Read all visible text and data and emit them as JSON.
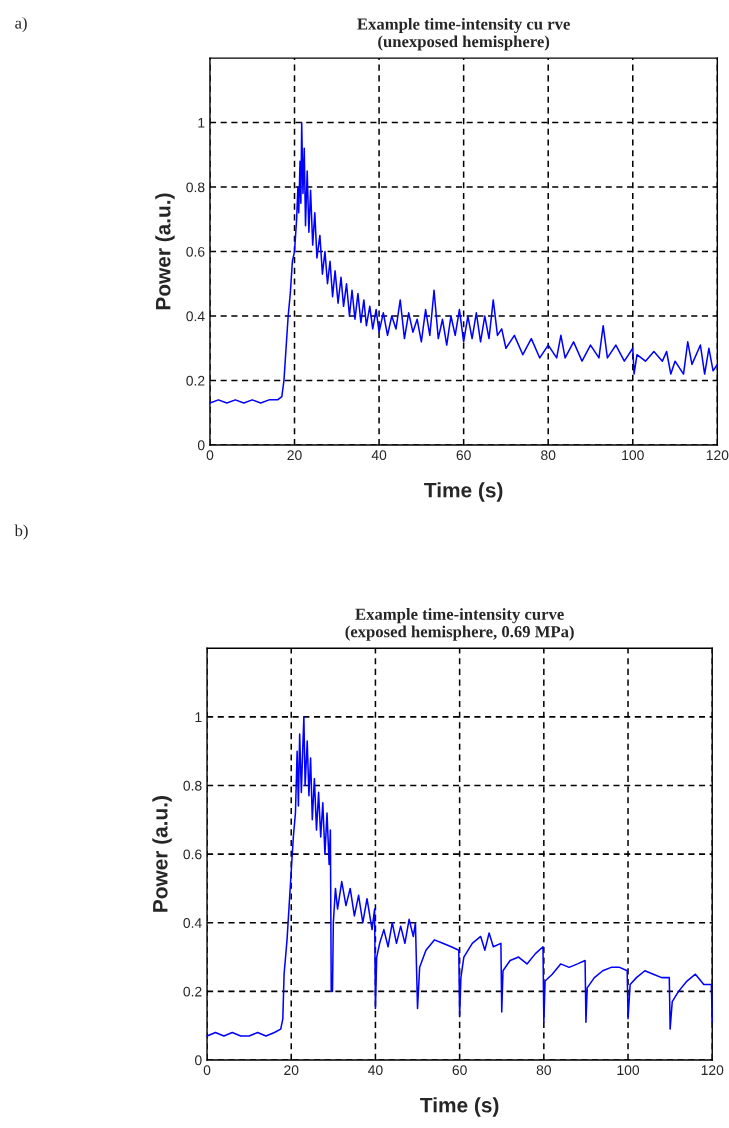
{
  "chart_data": [
    {
      "type": "line",
      "title": "Example time-intensity cu rve\n(unexposed hemisphere)",
      "xlabel": "Time (s)",
      "ylabel": "Power (a.u.)",
      "annotations": [
        "a)"
      ],
      "xlim": [
        0,
        120
      ],
      "ylim": [
        0,
        1.2
      ],
      "xticks": [
        0,
        20,
        40,
        60,
        80,
        100,
        120
      ],
      "yticks": [
        0,
        0.2,
        0.4,
        0.6,
        0.8,
        1
      ],
      "grid": true,
      "legend": false,
      "series": [
        {
          "color": "#0000ff",
          "x": [
            0,
            2,
            4,
            6,
            8,
            10,
            12,
            14,
            16,
            17,
            17.5,
            18,
            18.5,
            19,
            19.5,
            20,
            20.5,
            20.8,
            21,
            21.3,
            21.5,
            21.7,
            22,
            22.3,
            22.6,
            23,
            23.4,
            23.8,
            24.3,
            24.8,
            25.3,
            26,
            26.6,
            27.2,
            27.8,
            28.4,
            29,
            29.6,
            30.3,
            31,
            31.6,
            32.3,
            33,
            33.6,
            34.3,
            35,
            35.7,
            36.4,
            37,
            37.8,
            38.5,
            39.3,
            40,
            41,
            42,
            43,
            44,
            45,
            46,
            47,
            48,
            49,
            50,
            51,
            52,
            53,
            54,
            55,
            56,
            57,
            58,
            59,
            60,
            61,
            62,
            63,
            64,
            65,
            66,
            67,
            68,
            69,
            70,
            72,
            74,
            76,
            78,
            80,
            82,
            83,
            84,
            86,
            88,
            90,
            92,
            93,
            94,
            96,
            98,
            100,
            100.3,
            101,
            103,
            105,
            107,
            108,
            109,
            110,
            112,
            113,
            114,
            116,
            117,
            118,
            119,
            120
          ],
          "values": [
            0.13,
            0.14,
            0.13,
            0.14,
            0.13,
            0.14,
            0.13,
            0.14,
            0.14,
            0.15,
            0.2,
            0.3,
            0.4,
            0.47,
            0.57,
            0.6,
            0.7,
            0.8,
            0.72,
            0.88,
            0.75,
            1.0,
            0.78,
            0.92,
            0.68,
            0.85,
            0.66,
            0.79,
            0.62,
            0.72,
            0.58,
            0.65,
            0.53,
            0.6,
            0.5,
            0.57,
            0.46,
            0.54,
            0.44,
            0.52,
            0.43,
            0.5,
            0.4,
            0.48,
            0.39,
            0.47,
            0.38,
            0.45,
            0.37,
            0.43,
            0.36,
            0.42,
            0.35,
            0.41,
            0.34,
            0.4,
            0.36,
            0.45,
            0.33,
            0.41,
            0.35,
            0.39,
            0.32,
            0.42,
            0.34,
            0.48,
            0.33,
            0.39,
            0.31,
            0.4,
            0.34,
            0.42,
            0.32,
            0.4,
            0.33,
            0.41,
            0.32,
            0.4,
            0.33,
            0.45,
            0.34,
            0.36,
            0.3,
            0.34,
            0.28,
            0.33,
            0.27,
            0.31,
            0.27,
            0.34,
            0.27,
            0.32,
            0.26,
            0.31,
            0.27,
            0.37,
            0.27,
            0.31,
            0.26,
            0.3,
            0.22,
            0.28,
            0.26,
            0.29,
            0.26,
            0.29,
            0.22,
            0.26,
            0.22,
            0.32,
            0.25,
            0.31,
            0.22,
            0.3,
            0.23,
            0.25
          ]
        }
      ]
    },
    {
      "type": "line",
      "title": "Example time-intensity curve\n(exposed hemisphere, 0.69 MPa)",
      "xlabel": "Time (s)",
      "ylabel": "Power (a.u.)",
      "annotations": [
        "b)"
      ],
      "xlim": [
        0,
        120
      ],
      "ylim": [
        0,
        1.2
      ],
      "xticks": [
        0,
        20,
        40,
        60,
        80,
        100,
        120
      ],
      "yticks": [
        0,
        0.2,
        0.4,
        0.6,
        0.8,
        1
      ],
      "grid": true,
      "legend": false,
      "series": [
        {
          "color": "#0000ff",
          "x": [
            0,
            2,
            4,
            6,
            8,
            10,
            12,
            14,
            16,
            17.5,
            18,
            18.3,
            19,
            19.5,
            20,
            20.5,
            21,
            21.4,
            21.7,
            22,
            22.4,
            22.8,
            23,
            23.3,
            23.8,
            24.2,
            24.6,
            25,
            25.5,
            26,
            26.5,
            27,
            27.5,
            28,
            28.5,
            29,
            29.3,
            29.5,
            29.8,
            30,
            30.5,
            31,
            32,
            33,
            34,
            35,
            36,
            37,
            38,
            39.2,
            39.8,
            40,
            40.3,
            41,
            42,
            43,
            44,
            45,
            46,
            47,
            48,
            49,
            49.5,
            50,
            50.5,
            52,
            54,
            56,
            58,
            59.8,
            60,
            60.3,
            61,
            63,
            65,
            66,
            67,
            68,
            69.8,
            70,
            70.3,
            72,
            74,
            76,
            78,
            79.8,
            80,
            80.3,
            82,
            84,
            86,
            88,
            89.8,
            90,
            90.3,
            92,
            94,
            96,
            98,
            99.8,
            100,
            100.5,
            102,
            104,
            106,
            108,
            109.8,
            110,
            110.5,
            112,
            114,
            116,
            118,
            119.8,
            120
          ],
          "values": [
            0.07,
            0.08,
            0.07,
            0.08,
            0.07,
            0.07,
            0.08,
            0.07,
            0.08,
            0.09,
            0.12,
            0.25,
            0.35,
            0.45,
            0.55,
            0.65,
            0.72,
            0.9,
            0.74,
            0.95,
            0.78,
            0.93,
            1.0,
            0.8,
            0.93,
            0.77,
            0.88,
            0.7,
            0.82,
            0.67,
            0.78,
            0.65,
            0.75,
            0.6,
            0.72,
            0.57,
            0.67,
            0.2,
            0.2,
            0.4,
            0.5,
            0.44,
            0.52,
            0.45,
            0.5,
            0.42,
            0.48,
            0.4,
            0.47,
            0.38,
            0.44,
            0.15,
            0.3,
            0.34,
            0.38,
            0.33,
            0.4,
            0.34,
            0.39,
            0.34,
            0.41,
            0.36,
            0.4,
            0.15,
            0.27,
            0.32,
            0.35,
            0.34,
            0.33,
            0.32,
            0.13,
            0.24,
            0.3,
            0.34,
            0.36,
            0.32,
            0.37,
            0.33,
            0.34,
            0.14,
            0.26,
            0.29,
            0.3,
            0.28,
            0.31,
            0.33,
            0.11,
            0.23,
            0.25,
            0.28,
            0.27,
            0.28,
            0.29,
            0.11,
            0.21,
            0.24,
            0.26,
            0.27,
            0.27,
            0.26,
            0.12,
            0.22,
            0.24,
            0.26,
            0.25,
            0.24,
            0.24,
            0.09,
            0.17,
            0.2,
            0.23,
            0.25,
            0.22,
            0.22,
            0.11
          ]
        }
      ]
    }
  ]
}
